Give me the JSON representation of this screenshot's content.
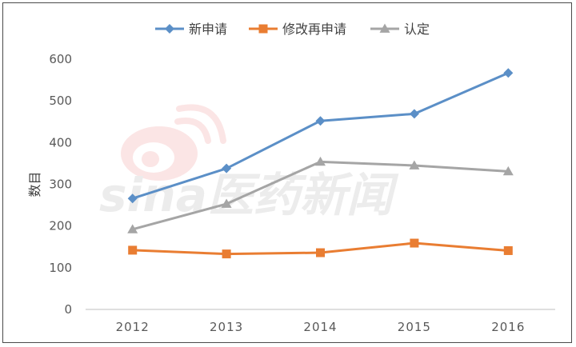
{
  "chart_data": {
    "type": "line",
    "categories": [
      "2012",
      "2013",
      "2014",
      "2015",
      "2016"
    ],
    "series": [
      {
        "name": "新申请",
        "values": [
          266,
          338,
          452,
          469,
          567
        ],
        "color": "#5b8fc7",
        "marker": "diamond"
      },
      {
        "name": "修改再申请",
        "values": [
          142,
          133,
          136,
          159,
          141
        ],
        "color": "#e97d32",
        "marker": "square"
      },
      {
        "name": "认定",
        "values": [
          192,
          253,
          354,
          345,
          331
        ],
        "color": "#a5a5a5",
        "marker": "triangle"
      }
    ],
    "ylabel": "数目",
    "ylim": [
      0,
      600
    ],
    "yticks": [
      0,
      100,
      200,
      300,
      400,
      500,
      600
    ],
    "grid": false,
    "legend_position": "top"
  },
  "watermark": {
    "text": "sina医药新闻",
    "color": "#ececec",
    "icon": "weibo-eye-icon"
  }
}
